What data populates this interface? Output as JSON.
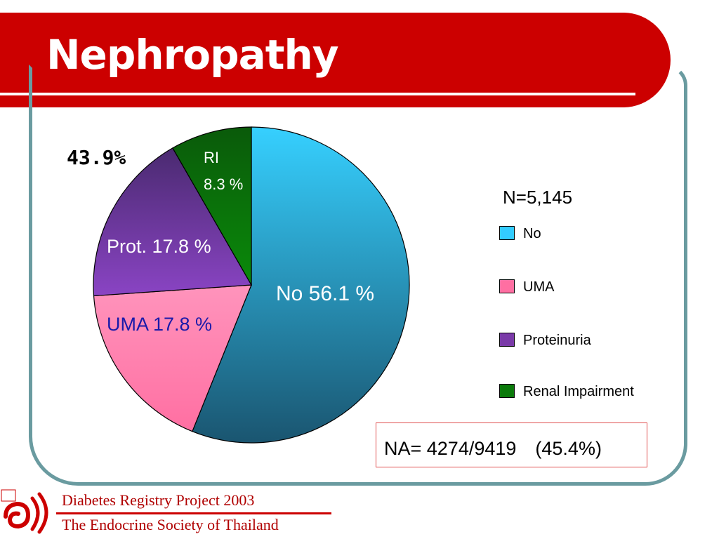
{
  "page": {
    "title": "Nephropathy",
    "highlight": "43.9%",
    "n_label": "N=5,145",
    "na_note": "NA= 4274/9419　(45.4%)",
    "footer": {
      "line1": "Diabetes Registry Project 2003",
      "line2": "The Endocrine Society of Thailand"
    }
  },
  "chart_data": {
    "type": "pie",
    "title": "",
    "slices": [
      {
        "name": "No",
        "legend": "No",
        "value": 56.1,
        "label": "No 56.1 %",
        "color": "#2fbde0",
        "label_color": "#ffffff"
      },
      {
        "name": "UMA",
        "legend": "UMA",
        "value": 17.8,
        "label": "UMA 17.8 %",
        "color": "#ff8cb4",
        "label_color": "#1a1aaa"
      },
      {
        "name": "Proteinuria",
        "legend": "Proteinuria",
        "value": 17.8,
        "label": "Prot. 17.8 %",
        "color": "#7a3aa8",
        "label_color": "#ffffff"
      },
      {
        "name": "Renal Impairment",
        "legend": "Renal Impairment",
        "value": 8.3,
        "label_lines": [
          "RI",
          "8.3 %"
        ],
        "color": "#0a7a0a",
        "label_color": "#ffffff"
      }
    ],
    "legend_position": "right"
  }
}
